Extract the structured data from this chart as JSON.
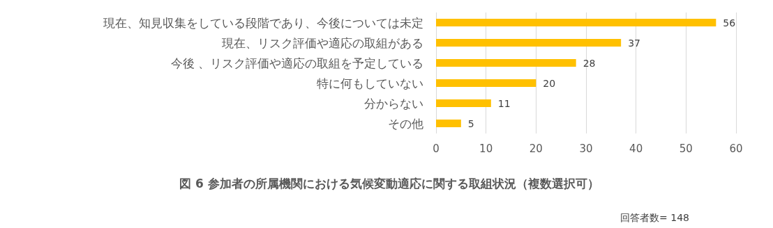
{
  "chart_data": {
    "type": "bar",
    "orientation": "horizontal",
    "title": "図 6 参加者の所属機関における気候変動適応に関する取組状況（複数選択可）",
    "categories": [
      "現在、知見収集をしている段階であり、今後については未定",
      "現在、リスク評価や適応の取組がある",
      "今後 、リスク評価や適応の取組を予定している",
      "特に何もしていない",
      "分からない",
      "その他"
    ],
    "values": [
      56,
      37,
      28,
      20,
      11,
      5
    ],
    "color": "#ffc000",
    "xlim": [
      0,
      60
    ],
    "xticks": [
      0,
      10,
      20,
      30,
      40,
      50,
      60
    ],
    "grid": "x",
    "data_labels": true,
    "annotations": [
      "回答者数= 148"
    ]
  }
}
